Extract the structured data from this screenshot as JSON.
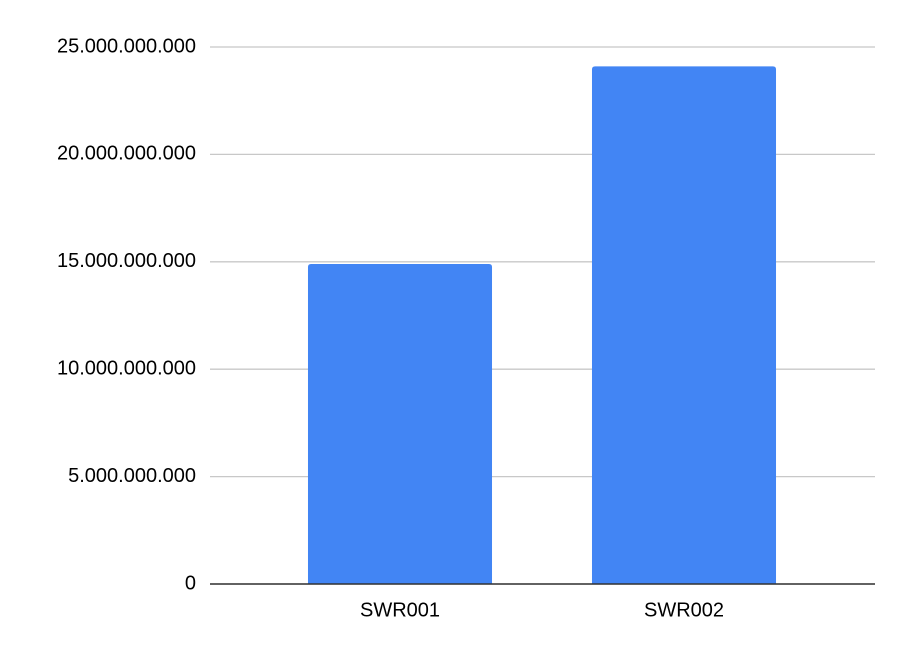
{
  "chart_data": {
    "type": "bar",
    "categories": [
      "SWR001",
      "SWR002"
    ],
    "values": [
      14900000000,
      24100000000
    ],
    "color": "#4285f4",
    "ylim": [
      0,
      25000000000
    ],
    "yticks": [
      0,
      {
        "value": 5000000000,
        "label": "5.000.000.000"
      },
      {
        "value": 10000000000,
        "label": "10.000.000.000"
      },
      {
        "value": 15000000000,
        "label": "15.000.000.000"
      },
      {
        "value": 20000000000,
        "label": "20.000.000.000"
      },
      {
        "value": 25000000000,
        "label": "25.000.000.000"
      }
    ],
    "grid": true
  }
}
